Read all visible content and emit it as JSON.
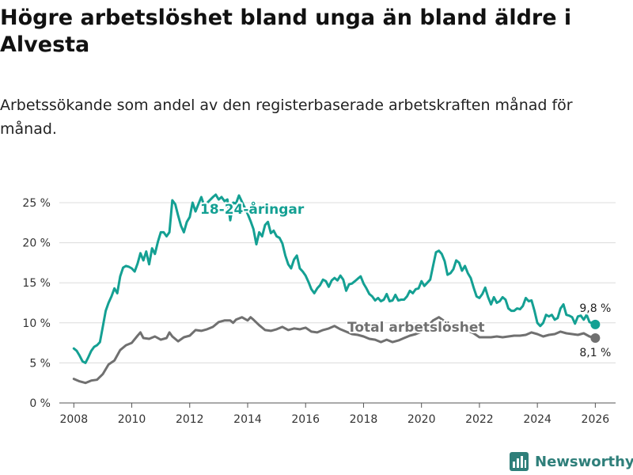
{
  "title": "Högre arbetslöshet bland unga än bland äldre i Alvesta",
  "subtitle": "Arbetssökande som andel av den registerbaserade arbetskraften månad för månad.",
  "brand": {
    "name": "Newsworthy",
    "color": "#2f7f7a"
  },
  "chart_data": {
    "type": "line",
    "title": "Högre arbetslöshet bland unga än bland äldre i Alvesta",
    "xlabel": "",
    "ylabel": "",
    "xlim": [
      2007.5,
      2026.7
    ],
    "ylim": [
      0,
      25
    ],
    "x_ticks": [
      2008,
      2010,
      2012,
      2014,
      2016,
      2018,
      2020,
      2022,
      2024,
      2026
    ],
    "x_tick_labels": [
      "2008",
      "2010",
      "2012",
      "2014",
      "2016",
      "2018",
      "2020",
      "2022",
      "2024",
      "2026"
    ],
    "y_ticks": [
      0,
      5,
      10,
      15,
      20,
      25
    ],
    "y_tick_labels": [
      "0 %",
      "5 %",
      "10 %",
      "15 %",
      "20 %",
      "25 %"
    ],
    "grid": true,
    "series": [
      {
        "name": "18-24-åringar",
        "label": "18-24-åringar",
        "color": "#14a093",
        "end_label": "9,8 %",
        "points": [
          [
            2008.0,
            6.8
          ],
          [
            2008.1,
            6.5
          ],
          [
            2008.2,
            5.9
          ],
          [
            2008.3,
            5.2
          ],
          [
            2008.4,
            5.0
          ],
          [
            2008.5,
            5.7
          ],
          [
            2008.6,
            6.5
          ],
          [
            2008.7,
            7.0
          ],
          [
            2008.8,
            7.2
          ],
          [
            2008.9,
            7.6
          ],
          [
            2009.0,
            9.5
          ],
          [
            2009.1,
            11.5
          ],
          [
            2009.2,
            12.5
          ],
          [
            2009.3,
            13.3
          ],
          [
            2009.4,
            14.3
          ],
          [
            2009.5,
            13.7
          ],
          [
            2009.6,
            15.8
          ],
          [
            2009.7,
            16.9
          ],
          [
            2009.8,
            17.1
          ],
          [
            2009.9,
            17.0
          ],
          [
            2010.0,
            16.8
          ],
          [
            2010.1,
            16.4
          ],
          [
            2010.2,
            17.4
          ],
          [
            2010.3,
            18.7
          ],
          [
            2010.4,
            17.8
          ],
          [
            2010.5,
            18.9
          ],
          [
            2010.6,
            17.3
          ],
          [
            2010.7,
            19.3
          ],
          [
            2010.8,
            18.6
          ],
          [
            2010.9,
            20.1
          ],
          [
            2011.0,
            21.3
          ],
          [
            2011.1,
            21.3
          ],
          [
            2011.2,
            20.8
          ],
          [
            2011.3,
            21.3
          ],
          [
            2011.4,
            25.3
          ],
          [
            2011.5,
            24.8
          ],
          [
            2011.6,
            23.4
          ],
          [
            2011.7,
            22.1
          ],
          [
            2011.8,
            21.3
          ],
          [
            2011.9,
            22.6
          ],
          [
            2012.0,
            23.2
          ],
          [
            2012.1,
            25.0
          ],
          [
            2012.2,
            23.9
          ],
          [
            2012.3,
            24.8
          ],
          [
            2012.4,
            25.7
          ],
          [
            2012.5,
            24.6
          ],
          [
            2012.8,
            25.7
          ],
          [
            2012.9,
            26.0
          ],
          [
            2013.0,
            25.4
          ],
          [
            2013.1,
            25.7
          ],
          [
            2013.2,
            25.2
          ],
          [
            2013.3,
            25.4
          ],
          [
            2013.4,
            22.8
          ],
          [
            2013.5,
            25.0
          ],
          [
            2013.6,
            24.9
          ],
          [
            2013.7,
            25.9
          ],
          [
            2014.0,
            23.6
          ],
          [
            2014.1,
            22.7
          ],
          [
            2014.2,
            21.7
          ],
          [
            2014.3,
            19.8
          ],
          [
            2014.4,
            21.3
          ],
          [
            2014.5,
            20.8
          ],
          [
            2014.6,
            22.2
          ],
          [
            2014.7,
            22.6
          ],
          [
            2014.8,
            21.2
          ],
          [
            2014.9,
            21.5
          ],
          [
            2015.0,
            20.8
          ],
          [
            2015.1,
            20.6
          ],
          [
            2015.2,
            19.9
          ],
          [
            2015.3,
            18.4
          ],
          [
            2015.4,
            17.3
          ],
          [
            2015.5,
            16.8
          ],
          [
            2015.6,
            17.9
          ],
          [
            2015.7,
            18.4
          ],
          [
            2015.8,
            16.8
          ],
          [
            2015.9,
            16.4
          ],
          [
            2016.0,
            15.9
          ],
          [
            2016.1,
            15.1
          ],
          [
            2016.2,
            14.2
          ],
          [
            2016.3,
            13.7
          ],
          [
            2016.4,
            14.3
          ],
          [
            2016.5,
            14.7
          ],
          [
            2016.6,
            15.4
          ],
          [
            2016.7,
            15.2
          ],
          [
            2016.8,
            14.5
          ],
          [
            2016.9,
            15.3
          ],
          [
            2017.0,
            15.6
          ],
          [
            2017.1,
            15.3
          ],
          [
            2017.2,
            15.9
          ],
          [
            2017.3,
            15.4
          ],
          [
            2017.4,
            14.0
          ],
          [
            2017.5,
            14.8
          ],
          [
            2017.6,
            14.9
          ],
          [
            2017.7,
            15.2
          ],
          [
            2017.8,
            15.5
          ],
          [
            2017.9,
            15.8
          ],
          [
            2018.0,
            14.9
          ],
          [
            2018.1,
            14.3
          ],
          [
            2018.2,
            13.6
          ],
          [
            2018.3,
            13.3
          ],
          [
            2018.4,
            12.8
          ],
          [
            2018.5,
            13.1
          ],
          [
            2018.6,
            12.7
          ],
          [
            2018.7,
            12.9
          ],
          [
            2018.8,
            13.6
          ],
          [
            2018.9,
            12.7
          ],
          [
            2019.0,
            12.8
          ],
          [
            2019.1,
            13.5
          ],
          [
            2019.2,
            12.8
          ],
          [
            2019.3,
            12.9
          ],
          [
            2019.4,
            12.9
          ],
          [
            2019.5,
            13.3
          ],
          [
            2019.6,
            14.0
          ],
          [
            2019.7,
            13.7
          ],
          [
            2019.8,
            14.2
          ],
          [
            2019.9,
            14.3
          ],
          [
            2020.0,
            15.2
          ],
          [
            2020.1,
            14.6
          ],
          [
            2020.2,
            15.0
          ],
          [
            2020.3,
            15.4
          ],
          [
            2020.4,
            17.1
          ],
          [
            2020.5,
            18.8
          ],
          [
            2020.6,
            19.0
          ],
          [
            2020.7,
            18.6
          ],
          [
            2020.8,
            17.7
          ],
          [
            2020.9,
            16.0
          ],
          [
            2021.0,
            16.2
          ],
          [
            2021.1,
            16.7
          ],
          [
            2021.2,
            17.8
          ],
          [
            2021.3,
            17.5
          ],
          [
            2021.4,
            16.5
          ],
          [
            2021.5,
            17.1
          ],
          [
            2021.6,
            16.2
          ],
          [
            2021.7,
            15.6
          ],
          [
            2021.8,
            14.4
          ],
          [
            2021.9,
            13.3
          ],
          [
            2022.0,
            13.1
          ],
          [
            2022.1,
            13.6
          ],
          [
            2022.2,
            14.4
          ],
          [
            2022.3,
            13.2
          ],
          [
            2022.4,
            12.3
          ],
          [
            2022.5,
            13.2
          ],
          [
            2022.6,
            12.5
          ],
          [
            2022.7,
            12.7
          ],
          [
            2022.8,
            13.2
          ],
          [
            2022.9,
            12.9
          ],
          [
            2023.0,
            11.8
          ],
          [
            2023.1,
            11.5
          ],
          [
            2023.2,
            11.5
          ],
          [
            2023.3,
            11.8
          ],
          [
            2023.4,
            11.7
          ],
          [
            2023.5,
            12.1
          ],
          [
            2023.6,
            13.1
          ],
          [
            2023.7,
            12.7
          ],
          [
            2023.8,
            12.8
          ],
          [
            2023.9,
            11.5
          ],
          [
            2024.0,
            10.0
          ],
          [
            2024.1,
            9.6
          ],
          [
            2024.2,
            10.0
          ],
          [
            2024.3,
            11.0
          ],
          [
            2024.4,
            10.8
          ],
          [
            2024.5,
            11.0
          ],
          [
            2024.6,
            10.4
          ],
          [
            2024.7,
            10.6
          ],
          [
            2024.8,
            11.8
          ],
          [
            2024.9,
            12.3
          ],
          [
            2025.0,
            11.0
          ],
          [
            2025.1,
            10.9
          ],
          [
            2025.2,
            10.7
          ],
          [
            2025.3,
            9.9
          ],
          [
            2025.4,
            10.8
          ],
          [
            2025.5,
            10.9
          ],
          [
            2025.6,
            10.4
          ],
          [
            2025.7,
            11.0
          ],
          [
            2025.8,
            10.1
          ],
          [
            2026.0,
            9.8
          ]
        ]
      },
      {
        "name": "Total arbetslöshet",
        "label": "Total arbetslöshet",
        "color": "#707070",
        "end_label": "8,1 %",
        "points": [
          [
            2008.0,
            3.0
          ],
          [
            2008.2,
            2.7
          ],
          [
            2008.4,
            2.5
          ],
          [
            2008.6,
            2.8
          ],
          [
            2008.8,
            2.9
          ],
          [
            2009.0,
            3.6
          ],
          [
            2009.2,
            4.8
          ],
          [
            2009.4,
            5.3
          ],
          [
            2009.6,
            6.6
          ],
          [
            2009.8,
            7.2
          ],
          [
            2010.0,
            7.5
          ],
          [
            2010.2,
            8.4
          ],
          [
            2010.3,
            8.8
          ],
          [
            2010.4,
            8.1
          ],
          [
            2010.6,
            8.0
          ],
          [
            2010.8,
            8.3
          ],
          [
            2011.0,
            7.9
          ],
          [
            2011.2,
            8.1
          ],
          [
            2011.3,
            8.8
          ],
          [
            2011.4,
            8.3
          ],
          [
            2011.6,
            7.7
          ],
          [
            2011.8,
            8.2
          ],
          [
            2012.0,
            8.4
          ],
          [
            2012.2,
            9.1
          ],
          [
            2012.4,
            9.0
          ],
          [
            2012.6,
            9.2
          ],
          [
            2012.8,
            9.5
          ],
          [
            2013.0,
            10.1
          ],
          [
            2013.2,
            10.3
          ],
          [
            2013.4,
            10.3
          ],
          [
            2013.5,
            10.0
          ],
          [
            2013.6,
            10.4
          ],
          [
            2013.8,
            10.7
          ],
          [
            2014.0,
            10.3
          ],
          [
            2014.1,
            10.7
          ],
          [
            2014.2,
            10.4
          ],
          [
            2014.4,
            9.7
          ],
          [
            2014.6,
            9.1
          ],
          [
            2014.8,
            9.0
          ],
          [
            2015.0,
            9.2
          ],
          [
            2015.2,
            9.5
          ],
          [
            2015.4,
            9.1
          ],
          [
            2015.6,
            9.3
          ],
          [
            2015.8,
            9.2
          ],
          [
            2016.0,
            9.4
          ],
          [
            2016.2,
            8.9
          ],
          [
            2016.4,
            8.8
          ],
          [
            2016.6,
            9.1
          ],
          [
            2016.8,
            9.3
          ],
          [
            2017.0,
            9.6
          ],
          [
            2017.2,
            9.2
          ],
          [
            2017.6,
            8.6
          ],
          [
            2017.8,
            8.5
          ],
          [
            2018.0,
            8.3
          ],
          [
            2018.2,
            8.0
          ],
          [
            2018.4,
            7.9
          ],
          [
            2018.6,
            7.6
          ],
          [
            2018.8,
            7.9
          ],
          [
            2019.0,
            7.6
          ],
          [
            2019.2,
            7.8
          ],
          [
            2019.4,
            8.1
          ],
          [
            2019.6,
            8.4
          ],
          [
            2019.8,
            8.6
          ],
          [
            2020.0,
            8.9
          ],
          [
            2020.2,
            9.5
          ],
          [
            2020.4,
            10.3
          ],
          [
            2020.6,
            10.7
          ],
          [
            2020.8,
            10.2
          ],
          [
            2021.0,
            9.6
          ],
          [
            2021.2,
            9.7
          ],
          [
            2021.4,
            9.5
          ],
          [
            2021.6,
            9.0
          ],
          [
            2021.8,
            8.7
          ],
          [
            2022.0,
            8.2
          ],
          [
            2022.2,
            8.2
          ],
          [
            2022.4,
            8.2
          ],
          [
            2022.6,
            8.3
          ],
          [
            2022.8,
            8.2
          ],
          [
            2023.0,
            8.3
          ],
          [
            2023.2,
            8.4
          ],
          [
            2023.4,
            8.4
          ],
          [
            2023.6,
            8.5
          ],
          [
            2023.8,
            8.8
          ],
          [
            2024.0,
            8.6
          ],
          [
            2024.2,
            8.3
          ],
          [
            2024.4,
            8.5
          ],
          [
            2024.6,
            8.6
          ],
          [
            2024.8,
            8.9
          ],
          [
            2025.0,
            8.7
          ],
          [
            2025.2,
            8.6
          ],
          [
            2025.4,
            8.5
          ],
          [
            2025.6,
            8.7
          ],
          [
            2025.8,
            8.3
          ],
          [
            2026.0,
            8.1
          ]
        ]
      }
    ]
  }
}
